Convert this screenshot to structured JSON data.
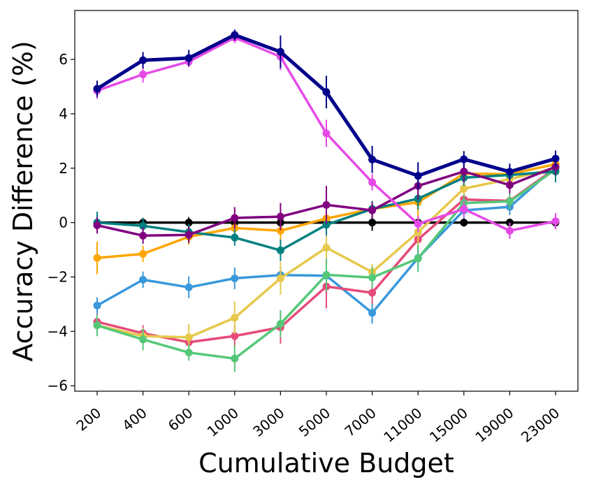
{
  "chart_data": {
    "type": "line",
    "xlabel": "Cumulative Budget",
    "ylabel": "Accuracy Difference (%)",
    "categories": [
      "200",
      "400",
      "600",
      "1000",
      "3000",
      "5000",
      "7000",
      "11000",
      "15000",
      "19000",
      "23000"
    ],
    "ylim": [
      -6.2,
      7.8
    ],
    "yticks": [
      -6,
      -4,
      -2,
      0,
      2,
      4,
      6
    ],
    "yticklabels": [
      "−6",
      "−4",
      "−2",
      "0",
      "2",
      "4",
      "6"
    ],
    "grid": false,
    "legend": "none",
    "series": [
      {
        "color": "#000000",
        "values": [
          0,
          0,
          0,
          0,
          0,
          0,
          0,
          0,
          0,
          0,
          0
        ],
        "errors": [
          0.15,
          0.12,
          0.2,
          0.15,
          0.15,
          0.15,
          0.3,
          0.2,
          0.15,
          0.15,
          0.2
        ]
      },
      {
        "color": "#3a98dc",
        "values": [
          -3.05,
          -2.1,
          -2.38,
          -2.05,
          -1.93,
          -1.95,
          -3.32,
          -1.3,
          0.45,
          0.58,
          2.05
        ],
        "errors": [
          0.3,
          0.3,
          0.4,
          0.4,
          0.3,
          0.3,
          0.4,
          0.4,
          0.3,
          0.3,
          0.3
        ]
      },
      {
        "color": "#e64a78",
        "values": [
          -3.65,
          -4.07,
          -4.4,
          -4.17,
          -3.85,
          -2.35,
          -2.58,
          -0.62,
          0.85,
          0.8,
          2.0
        ],
        "errors": [
          0.3,
          0.3,
          0.3,
          0.4,
          0.6,
          0.8,
          0.4,
          0.5,
          0.3,
          0.3,
          0.3
        ]
      },
      {
        "color": "#e6c84a",
        "values": [
          -3.78,
          -4.17,
          -4.22,
          -3.5,
          -2.05,
          -0.92,
          -1.82,
          -0.35,
          1.25,
          1.6,
          2.0
        ],
        "errors": [
          0.3,
          0.3,
          0.5,
          0.6,
          0.6,
          0.7,
          0.3,
          0.5,
          0.3,
          0.3,
          0.3
        ]
      },
      {
        "color": "#55c878",
        "values": [
          -3.78,
          -4.3,
          -4.78,
          -5.0,
          -3.72,
          -1.92,
          -2.02,
          -1.32,
          0.72,
          0.78,
          1.95
        ],
        "errors": [
          0.4,
          0.4,
          0.3,
          0.5,
          0.5,
          0.6,
          0.4,
          0.5,
          0.3,
          0.3,
          0.4
        ]
      },
      {
        "color": "#ffa500",
        "values": [
          -1.3,
          -1.15,
          -0.52,
          -0.2,
          -0.3,
          0.15,
          0.5,
          0.75,
          1.8,
          1.78,
          2.15
        ],
        "errors": [
          0.6,
          0.3,
          0.3,
          0.4,
          0.4,
          0.4,
          0.3,
          0.6,
          0.3,
          0.3,
          0.3
        ]
      },
      {
        "color": "#008080",
        "values": [
          0,
          -0.12,
          -0.35,
          -0.55,
          -1.02,
          -0.08,
          0.5,
          0.88,
          1.65,
          1.75,
          1.88
        ],
        "errors": [
          0.4,
          0.3,
          0.3,
          0.3,
          0.4,
          0.4,
          0.3,
          0.4,
          0.3,
          0.3,
          0.4
        ]
      },
      {
        "color": "#800080",
        "values": [
          -0.1,
          -0.48,
          -0.45,
          0.17,
          0.22,
          0.65,
          0.45,
          1.35,
          1.88,
          1.38,
          2.05
        ],
        "errors": [
          0.3,
          0.3,
          0.3,
          0.4,
          0.5,
          0.7,
          0.3,
          0.5,
          0.4,
          0.3,
          0.3
        ]
      },
      {
        "color": "#e64ae6",
        "values": [
          4.85,
          5.45,
          5.92,
          6.8,
          6.1,
          3.28,
          1.48,
          -0.05,
          0.5,
          -0.3,
          0.05
        ],
        "errors": [
          0.3,
          0.3,
          0.2,
          0.2,
          0.5,
          0.5,
          0.3,
          0.3,
          0.3,
          0.3,
          0.3
        ]
      },
      {
        "color": "#00008b",
        "values": [
          4.92,
          5.97,
          6.05,
          6.9,
          6.28,
          4.8,
          2.32,
          1.72,
          2.33,
          1.87,
          2.35
        ],
        "errors": [
          0.3,
          0.3,
          0.3,
          0.2,
          0.6,
          0.6,
          0.5,
          0.5,
          0.3,
          0.3,
          0.3
        ],
        "bold": true
      }
    ]
  }
}
